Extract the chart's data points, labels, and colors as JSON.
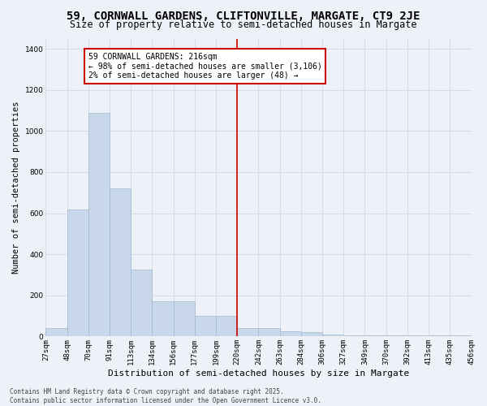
{
  "title": "59, CORNWALL GARDENS, CLIFTONVILLE, MARGATE, CT9 2JE",
  "subtitle": "Size of property relative to semi-detached houses in Margate",
  "xlabel": "Distribution of semi-detached houses by size in Margate",
  "ylabel": "Number of semi-detached properties",
  "bar_values": [
    40,
    620,
    1090,
    720,
    325,
    170,
    170,
    100,
    100,
    40,
    40,
    25,
    20,
    10,
    5,
    5,
    5,
    5,
    5,
    5
  ],
  "categories": [
    "27sqm",
    "48sqm",
    "70sqm",
    "91sqm",
    "113sqm",
    "134sqm",
    "156sqm",
    "177sqm",
    "199sqm",
    "220sqm",
    "242sqm",
    "263sqm",
    "284sqm",
    "306sqm",
    "327sqm",
    "349sqm",
    "370sqm",
    "392sqm",
    "413sqm",
    "435sqm",
    "456sqm"
  ],
  "bar_color": "#c8d8ea",
  "bar_edge_color": "#a0b8d0",
  "vline_position": 9,
  "vline_color": "#cc0000",
  "annotation_text": "59 CORNWALL GARDENS: 216sqm\n← 98% of semi-detached houses are smaller (3,106)\n2% of semi-detached houses are larger (48) →",
  "annotation_box_color": "#ffffff",
  "annotation_box_edge_color": "#cc0000",
  "ylim": [
    0,
    1450
  ],
  "yticks": [
    0,
    200,
    400,
    600,
    800,
    1000,
    1200,
    1400
  ],
  "background_color": "#eef2f8",
  "grid_color": "#d8dce8",
  "footer_text": "Contains HM Land Registry data © Crown copyright and database right 2025.\nContains public sector information licensed under the Open Government Licence v3.0.",
  "title_fontsize": 10,
  "subtitle_fontsize": 8.5,
  "axis_label_fontsize": 7.5,
  "tick_fontsize": 6.5,
  "annotation_fontsize": 7
}
